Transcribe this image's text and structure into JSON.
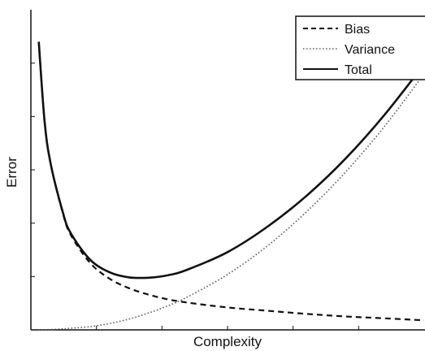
{
  "chart_data": {
    "type": "line",
    "title": "",
    "xlabel": "Complexity",
    "ylabel": "Error",
    "xlim": [
      0,
      10
    ],
    "ylim": [
      0,
      10
    ],
    "grid": false,
    "tick_labels": false,
    "legend": {
      "placement": "top-right",
      "box": true
    },
    "x": [
      0.2,
      0.35,
      0.5,
      0.8,
      1.0,
      1.5,
      2.0,
      2.5,
      3.0,
      3.5,
      4.0,
      5.0,
      6.0,
      7.0,
      8.0,
      9.0,
      10.0
    ],
    "series": [
      {
        "name": "Bias",
        "style": "dashed",
        "values": [
          9.0,
          6.5,
          5.2,
          3.7,
          3.0,
          2.1,
          1.6,
          1.3,
          1.1,
          0.95,
          0.85,
          0.7,
          0.6,
          0.5,
          0.42,
          0.36,
          0.3
        ]
      },
      {
        "name": "Variance",
        "style": "dotted",
        "values": [
          0.0,
          0.0,
          0.01,
          0.03,
          0.05,
          0.1,
          0.2,
          0.34,
          0.53,
          0.76,
          1.04,
          1.73,
          2.61,
          3.68,
          4.93,
          6.37,
          8.0
        ]
      },
      {
        "name": "Total",
        "style": "solid",
        "values": [
          9.0,
          6.5,
          5.21,
          3.73,
          3.05,
          2.2,
          1.8,
          1.64,
          1.63,
          1.71,
          1.89,
          2.43,
          3.21,
          4.18,
          5.35,
          6.73,
          8.3
        ]
      }
    ],
    "colors": {
      "line": "#111111",
      "variance": "#555555",
      "axis": "#111111"
    }
  }
}
